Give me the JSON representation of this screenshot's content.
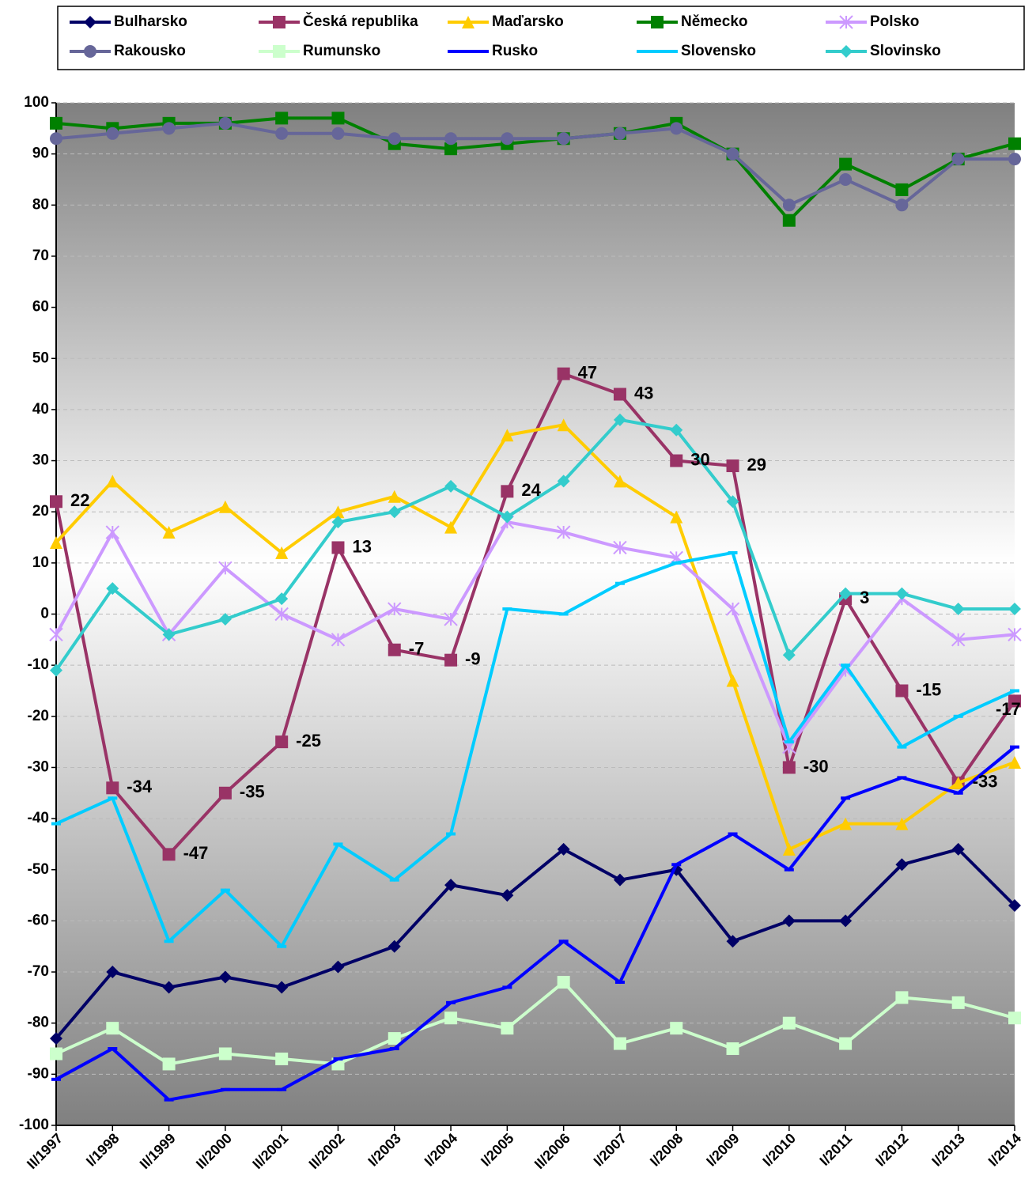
{
  "chart_data": {
    "type": "line",
    "categories": [
      "II/1997",
      "I/1998",
      "II/1999",
      "II/2000",
      "II/2001",
      "II/2002",
      "I/2003",
      "I/2004",
      "I/2005",
      "II/2006",
      "I/2007",
      "I/2008",
      "I/2009",
      "I/2010",
      "I/2011",
      "I/2012",
      "I/2013",
      "I/2014"
    ],
    "series": [
      {
        "name": "Bulharsko",
        "color": "#000066",
        "marker": "diamond",
        "values": [
          -83,
          -70,
          -73,
          -71,
          -73,
          -69,
          -65,
          -53,
          -55,
          -46,
          -52,
          -50,
          -64,
          -60,
          -60,
          -49,
          -46,
          -57
        ]
      },
      {
        "name": "Česká republika",
        "color": "#993366",
        "marker": "square",
        "data_labels": true,
        "values": [
          22,
          -34,
          -47,
          -35,
          -25,
          13,
          -7,
          -9,
          24,
          47,
          43,
          30,
          29,
          -30,
          3,
          -15,
          -33,
          -17
        ]
      },
      {
        "name": "Maďarsko",
        "color": "#FFCC00",
        "marker": "triangle",
        "values": [
          14,
          26,
          16,
          21,
          12,
          20,
          23,
          17,
          35,
          37,
          26,
          19,
          -13,
          -46,
          -41,
          -41,
          -33,
          -29
        ]
      },
      {
        "name": "Německo",
        "color": "#008000",
        "marker": "square",
        "values": [
          96,
          95,
          96,
          96,
          97,
          97,
          92,
          91,
          92,
          93,
          94,
          96,
          90,
          77,
          88,
          83,
          89,
          92
        ]
      },
      {
        "name": "Polsko",
        "color": "#CC99FF",
        "marker": "asterisk",
        "values": [
          -4,
          16,
          -4,
          9,
          0,
          -5,
          1,
          -1,
          18,
          16,
          13,
          11,
          1,
          -26,
          -11,
          3,
          -5,
          -4
        ]
      },
      {
        "name": "Rakousko",
        "color": "#666699",
        "marker": "circle",
        "values": [
          93,
          94,
          95,
          96,
          94,
          94,
          93,
          93,
          93,
          93,
          94,
          95,
          90,
          80,
          85,
          80,
          89,
          89
        ]
      },
      {
        "name": "Rumunsko",
        "color": "#CCFFCC",
        "marker": "square",
        "values": [
          -86,
          -81,
          -88,
          -86,
          -87,
          -88,
          -83,
          -79,
          -81,
          -72,
          -84,
          -81,
          -85,
          -80,
          -84,
          -75,
          -76,
          -79
        ]
      },
      {
        "name": "Rusko",
        "color": "#0000FF",
        "marker": "dash",
        "values": [
          -91,
          -85,
          -95,
          -93,
          -93,
          -87,
          -85,
          -76,
          -73,
          -64,
          -72,
          -49,
          -43,
          -50,
          -36,
          -32,
          -35,
          -26
        ]
      },
      {
        "name": "Slovensko",
        "color": "#00CCFF",
        "marker": "dash",
        "values": [
          -41,
          -36,
          -64,
          -54,
          -65,
          -45,
          -52,
          -43,
          1,
          0,
          6,
          10,
          12,
          -25,
          -10,
          -26,
          -20,
          -15
        ]
      },
      {
        "name": "Slovinsko",
        "color": "#33CCCC",
        "marker": "diamond",
        "values": [
          -11,
          5,
          -4,
          -1,
          3,
          18,
          20,
          25,
          19,
          26,
          38,
          36,
          22,
          -8,
          4,
          4,
          1,
          1
        ]
      }
    ],
    "ylim": [
      -100,
      100
    ],
    "yticks": [
      -100,
      -90,
      -80,
      -70,
      -60,
      -50,
      -40,
      -30,
      -20,
      -10,
      0,
      10,
      20,
      30,
      40,
      50,
      60,
      70,
      80,
      90,
      100
    ],
    "grid": true,
    "legend": "top"
  }
}
